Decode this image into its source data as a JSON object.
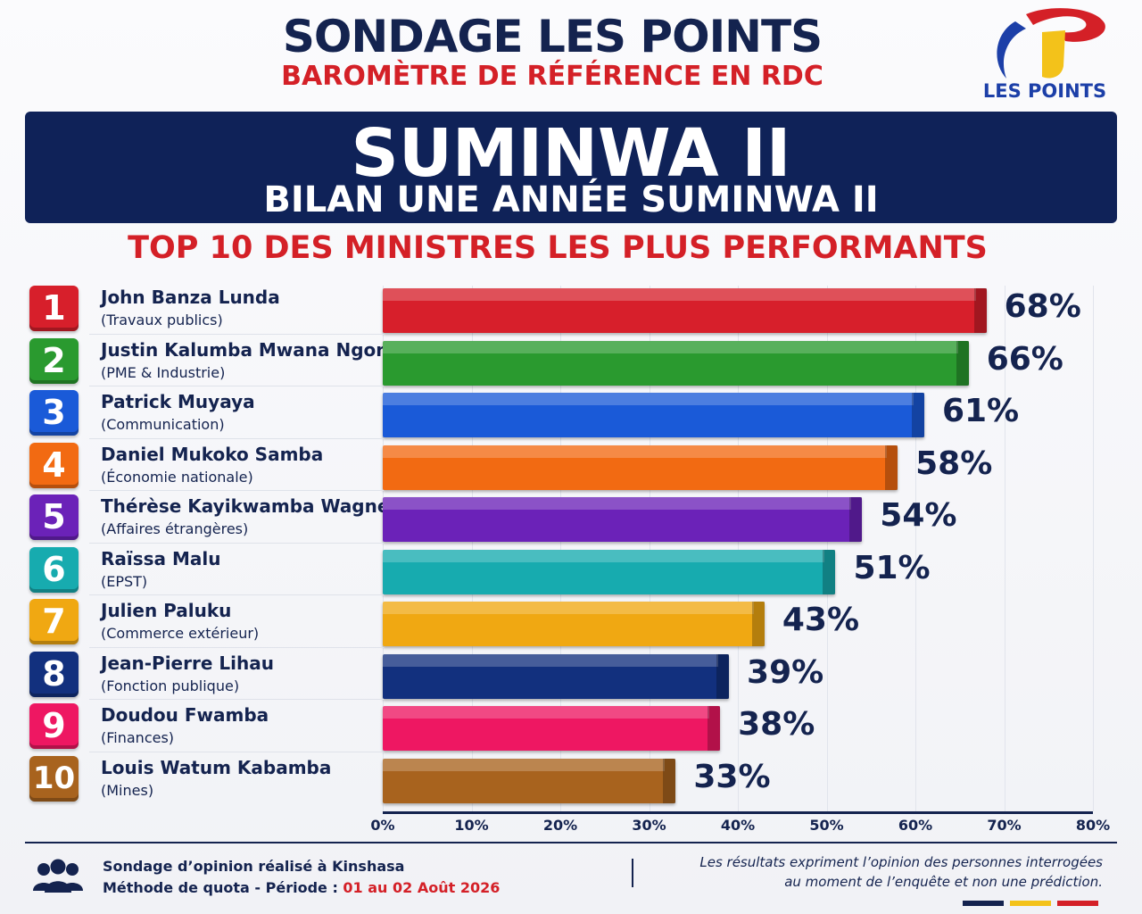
{
  "header": {
    "title": "SONDAGE LES POINTS",
    "subtitle": "BAROMÈTRE DE RÉFÉRENCE EN RDC",
    "logo_text": "LES POINTS"
  },
  "banner": {
    "title": "SUMINWA II",
    "subtitle": "BILAN UNE ANNÉE SUMINWA II"
  },
  "section_title": "TOP 10 DES MINISTRES LES PLUS PERFORMANTS",
  "chart_data": {
    "type": "bar",
    "orientation": "horizontal",
    "title": "TOP 10 DES MINISTRES LES PLUS PERFORMANTS",
    "xlim": [
      0,
      80
    ],
    "x_ticks": [
      "0%",
      "10%",
      "20%",
      "30%",
      "40%",
      "50%",
      "60%",
      "70%",
      "80%"
    ],
    "grid": true,
    "items": [
      {
        "rank": "1",
        "name": "John Banza Lunda",
        "portfolio": "(Travaux publics)",
        "value": 68,
        "label": "68%",
        "color": "#d71f2b"
      },
      {
        "rank": "2",
        "name": "Justin Kalumba Mwana Ngongo",
        "portfolio": "(PME & Industrie)",
        "value": 66,
        "label": "66%",
        "color": "#2a9a2f"
      },
      {
        "rank": "3",
        "name": "Patrick Muyaya",
        "portfolio": "(Communication)",
        "value": 61,
        "label": "61%",
        "color": "#1a5ad8"
      },
      {
        "rank": "4",
        "name": "Daniel Mukoko Samba",
        "portfolio": "(Économie nationale)",
        "value": 58,
        "label": "58%",
        "color": "#f26a12"
      },
      {
        "rank": "5",
        "name": "Thérèse Kayikwamba Wagner",
        "portfolio": "(Affaires étrangères)",
        "value": 54,
        "label": "54%",
        "color": "#6b22b8"
      },
      {
        "rank": "6",
        "name": "Raïssa Malu",
        "portfolio": "(EPST)",
        "value": 51,
        "label": "51%",
        "color": "#17abaf"
      },
      {
        "rank": "7",
        "name": "Julien Paluku",
        "portfolio": "(Commerce extérieur)",
        "value": 43,
        "label": "43%",
        "color": "#f0a812"
      },
      {
        "rank": "8",
        "name": "Jean-Pierre Lihau",
        "portfolio": "(Fonction publique)",
        "value": 39,
        "label": "39%",
        "color": "#12307e"
      },
      {
        "rank": "9",
        "name": "Doudou Fwamba",
        "portfolio": "(Finances)",
        "value": 38,
        "label": "38%",
        "color": "#ee1762"
      },
      {
        "rank": "10",
        "name": "Louis Watum Kabamba",
        "portfolio": "(Mines)",
        "value": 33,
        "label": "33%",
        "color": "#a8631e"
      }
    ]
  },
  "footer": {
    "line1": "Sondage d’opinion réalisé à Kinshasa",
    "line2_prefix": "Méthode de quota - Période : ",
    "line2_date": "01 au 02 Août 2026",
    "disclaimer_1": "Les résultats expriment l’opinion des personnes interrogées",
    "disclaimer_2": "au moment de l’enquête et non une prédiction.",
    "flag_colors": [
      "#14234f",
      "#f3c21a",
      "#d42027"
    ]
  }
}
